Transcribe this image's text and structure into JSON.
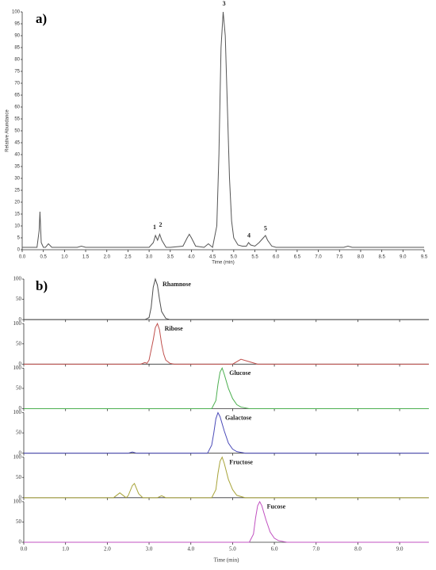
{
  "chart_data": [
    {
      "type": "line",
      "panel_label": "a)",
      "x_label": "Time (min)",
      "y_label": "Relative Abundance",
      "xlim": [
        0,
        9.5
      ],
      "ylim": [
        0,
        100
      ],
      "xticks": [
        {
          "value": 0,
          "label": "0.0"
        },
        0.5,
        {
          "value": 1,
          "label": "1.0"
        },
        1.5,
        {
          "value": 2,
          "label": "2.0"
        },
        2.5,
        {
          "value": 3,
          "label": "3.0"
        },
        3.5,
        {
          "value": 4,
          "label": "4.0"
        },
        4.5,
        {
          "value": 5,
          "label": "5.0"
        },
        5.5,
        {
          "value": 6,
          "label": "6.0"
        },
        6.5,
        {
          "value": 7,
          "label": "7.0"
        },
        7.5,
        {
          "value": 8,
          "label": "8.0"
        },
        8.5,
        {
          "value": 9,
          "label": "9.0"
        },
        9.5
      ],
      "yticks": [
        0,
        5,
        10,
        15,
        20,
        25,
        30,
        35,
        40,
        45,
        50,
        55,
        60,
        65,
        70,
        75,
        80,
        85,
        90,
        95,
        100
      ],
      "series": [
        {
          "color": "#555555",
          "x": [
            0,
            0.35,
            0.4,
            0.42,
            0.45,
            0.5,
            0.55,
            0.62,
            0.7,
            1.3,
            1.4,
            1.5,
            3.0,
            3.1,
            3.15,
            3.2,
            3.25,
            3.3,
            3.4,
            3.5,
            3.8,
            3.9,
            3.95,
            4.0,
            4.1,
            4.3,
            4.4,
            4.5,
            4.6,
            4.65,
            4.7,
            4.75,
            4.8,
            4.85,
            4.9,
            4.95,
            5.0,
            5.1,
            5.2,
            5.3,
            5.35,
            5.4,
            5.5,
            5.6,
            5.7,
            5.75,
            5.8,
            5.9,
            6.0,
            7.6,
            7.7,
            7.8,
            9.5
          ],
          "values": [
            1,
            1,
            8,
            16,
            3,
            1,
            1,
            2.5,
            1,
            1,
            1.5,
            1,
            1,
            3,
            6,
            4,
            6.5,
            4,
            1,
            1,
            1.5,
            5,
            6.5,
            5,
            1.5,
            1,
            2.5,
            1,
            10,
            40,
            85,
            100,
            90,
            60,
            30,
            12,
            5,
            2,
            1.5,
            1.5,
            3,
            2,
            1.5,
            3,
            5,
            6,
            4,
            1.5,
            1,
            1,
            1.5,
            1,
            1
          ]
        }
      ],
      "annotations": [
        {
          "text": "1",
          "x": 3.13,
          "y": 8
        },
        {
          "text": "2",
          "x": 3.27,
          "y": 9
        },
        {
          "text": "3",
          "x": 4.77,
          "y": 102
        },
        {
          "text": "4",
          "x": 5.36,
          "y": 4.5
        },
        {
          "text": "5",
          "x": 5.75,
          "y": 7.5
        }
      ]
    },
    {
      "type": "line",
      "panel_label": "b)",
      "x_label": "Time (min)",
      "separate_panels": true,
      "xlim": [
        0,
        9.7
      ],
      "ylim": [
        0,
        100
      ],
      "xticks": [
        {
          "value": 0,
          "label": "0.0"
        },
        {
          "value": 1,
          "label": "1.0"
        },
        {
          "value": 2,
          "label": "2.0"
        },
        {
          "value": 3,
          "label": "3.0"
        },
        {
          "value": 4,
          "label": "4.0"
        },
        {
          "value": 5,
          "label": "5.0"
        },
        {
          "value": 6,
          "label": "6.0"
        },
        {
          "value": 7,
          "label": "7.0"
        },
        {
          "value": 8,
          "label": "8.0"
        },
        {
          "value": 9,
          "label": "9.0"
        }
      ],
      "yticks": [
        0,
        50,
        100
      ],
      "series": [
        {
          "name": "Rhamnose",
          "color": "#4d4d4d",
          "x": [
            0,
            2.9,
            3.0,
            3.05,
            3.1,
            3.15,
            3.2,
            3.25,
            3.3,
            3.4,
            3.5,
            9.7
          ],
          "values": [
            0,
            0,
            5,
            30,
            80,
            100,
            85,
            50,
            20,
            3,
            0,
            0
          ]
        },
        {
          "name": "Ribose",
          "color": "#c0504d",
          "x": [
            0,
            2.8,
            2.9,
            2.95,
            3.0,
            3.1,
            3.15,
            3.2,
            3.25,
            3.3,
            3.35,
            3.4,
            3.5,
            3.6,
            5.0,
            5.2,
            5.4,
            5.6,
            9.7
          ],
          "values": [
            0,
            0,
            4,
            2,
            10,
            60,
            90,
            100,
            85,
            50,
            25,
            10,
            2,
            0,
            0,
            12,
            6,
            0,
            0
          ]
        },
        {
          "name": "Glucose",
          "color": "#4caf50",
          "x": [
            0,
            4.5,
            4.6,
            4.65,
            4.7,
            4.75,
            4.8,
            4.9,
            5.0,
            5.1,
            5.2,
            5.4,
            9.7
          ],
          "values": [
            0,
            0,
            20,
            60,
            90,
            100,
            85,
            50,
            25,
            10,
            4,
            0,
            0
          ]
        },
        {
          "name": "Galactose",
          "color": "#4a4ab8",
          "x": [
            0,
            2.5,
            2.6,
            2.7,
            4.4,
            4.5,
            4.55,
            4.6,
            4.65,
            4.7,
            4.8,
            4.9,
            5.0,
            5.1,
            5.3,
            9.7
          ],
          "values": [
            0,
            0,
            3,
            0,
            0,
            20,
            50,
            85,
            100,
            90,
            55,
            25,
            10,
            4,
            0,
            0
          ]
        },
        {
          "name": "Fructose",
          "color": "#a8a43a",
          "x": [
            0,
            2.15,
            2.3,
            2.45,
            2.5,
            2.6,
            2.65,
            2.75,
            2.85,
            3.2,
            3.3,
            3.4,
            4.5,
            4.6,
            4.65,
            4.7,
            4.75,
            4.8,
            4.9,
            5.0,
            5.1,
            5.3,
            9.7
          ],
          "values": [
            0,
            0,
            12,
            0,
            5,
            30,
            35,
            10,
            0,
            0,
            5,
            0,
            0,
            20,
            60,
            90,
            100,
            85,
            45,
            20,
            6,
            0,
            0
          ]
        },
        {
          "name": "Fucose",
          "color": "#c050c0",
          "x": [
            0,
            5.4,
            5.5,
            5.55,
            5.6,
            5.65,
            5.7,
            5.8,
            5.9,
            6.0,
            6.1,
            6.3,
            9.7
          ],
          "values": [
            0,
            0,
            20,
            60,
            90,
            100,
            90,
            55,
            25,
            10,
            4,
            0,
            0
          ]
        }
      ]
    }
  ]
}
